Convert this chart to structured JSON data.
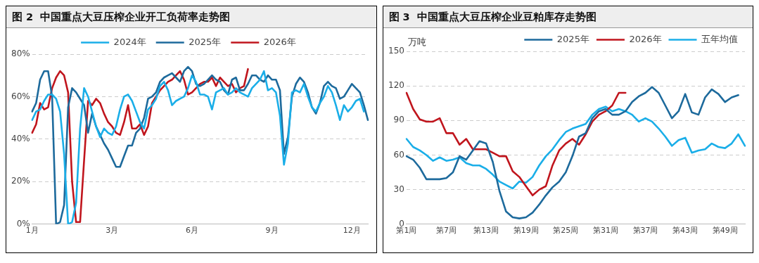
{
  "chart_data": [
    {
      "type": "line",
      "title": "图 2  中国重点大豆压榨企业开工负荷率走势图",
      "categories": [
        "1月",
        null,
        null,
        null,
        null,
        null,
        null,
        null,
        null,
        null,
        null,
        null,
        null,
        null,
        null,
        null,
        null,
        null,
        null,
        null,
        "3月",
        null,
        null,
        null,
        null,
        null,
        null,
        null,
        null,
        null,
        null,
        null,
        null,
        null,
        null,
        null,
        null,
        null,
        null,
        null,
        "6月",
        null,
        null,
        null,
        null,
        null,
        null,
        null,
        null,
        null,
        null,
        null,
        null,
        null,
        null,
        null,
        null,
        null,
        null,
        null,
        "9月",
        null,
        null,
        null,
        null,
        null,
        null,
        null,
        null,
        null,
        null,
        null,
        null,
        null,
        null,
        null,
        null,
        null,
        null,
        null,
        "12月",
        null,
        null,
        null,
        null
      ],
      "ylim": [
        0,
        80
      ],
      "yticks": [
        {
          "value": 0,
          "label": "0%"
        },
        {
          "value": 20,
          "label": "20%"
        },
        {
          "value": 40,
          "label": "40%"
        },
        {
          "value": 60,
          "label": "60%"
        },
        {
          "value": 80,
          "label": "80%"
        }
      ],
      "grid": "y",
      "legend": "top",
      "line_style": "solid",
      "marker": "none",
      "series": [
        {
          "name": "2024年",
          "color": "#1aaee8",
          "values": [
            49,
            53,
            54,
            58,
            61,
            61,
            59,
            53,
            33,
            0,
            1,
            10,
            45,
            64,
            60,
            53,
            46,
            41,
            45,
            43,
            42,
            46,
            54,
            60,
            61,
            58,
            53,
            48,
            45,
            54,
            56,
            59,
            65,
            67,
            63,
            56,
            58,
            59,
            60,
            64,
            70,
            67,
            61,
            61,
            60,
            54,
            62,
            63,
            64,
            61,
            62,
            64,
            62,
            61,
            60,
            64,
            66,
            68,
            72,
            63,
            64,
            62,
            51,
            28,
            38,
            62,
            63,
            62,
            66,
            60,
            55,
            53,
            57,
            60,
            65,
            62,
            56,
            49,
            56,
            53,
            55,
            58,
            59,
            53,
            null
          ]
        },
        {
          "name": "2025年",
          "color": "#1d6a9c",
          "values": [
            53,
            57,
            68,
            72,
            72,
            60,
            0,
            1,
            9,
            55,
            64,
            62,
            59,
            56,
            43,
            52,
            46,
            42,
            38,
            35,
            31,
            27,
            27,
            32,
            37,
            37,
            43,
            45,
            50,
            59,
            60,
            62,
            67,
            69,
            70,
            71,
            69,
            67,
            72,
            74,
            72,
            66,
            65,
            66,
            68,
            70,
            68,
            67,
            63,
            61,
            68,
            69,
            63,
            63,
            66,
            70,
            70,
            68,
            67,
            70,
            68,
            68,
            63,
            33,
            41,
            60,
            66,
            69,
            67,
            62,
            55,
            52,
            57,
            65,
            67,
            65,
            64,
            59,
            60,
            63,
            66,
            64,
            62,
            56,
            49
          ]
        },
        {
          "name": "2026年",
          "color": "#c0151d",
          "values": [
            43,
            47,
            57,
            54,
            55,
            64,
            69,
            72,
            70,
            62,
            20,
            1,
            1,
            30,
            58,
            56,
            59,
            57,
            52,
            48,
            46,
            43,
            42,
            48,
            56,
            45,
            45,
            47,
            42,
            46,
            57,
            60,
            63,
            65,
            67,
            68,
            70,
            72,
            68,
            61,
            62,
            64,
            66,
            67,
            67,
            69,
            65,
            69,
            67,
            65,
            66,
            62,
            64,
            65,
            73,
            null,
            null,
            null,
            null,
            null,
            null,
            null,
            null,
            null,
            null,
            null,
            null,
            null,
            null,
            null,
            null,
            null,
            null,
            null,
            null,
            null,
            null,
            null,
            null,
            null,
            null,
            null,
            null,
            null,
            null
          ]
        }
      ]
    },
    {
      "type": "line",
      "title": "图 3  中国重点大豆压榨企业豆粕库存走势图",
      "ylabel": "万吨",
      "categories": [
        "第1周",
        null,
        null,
        null,
        null,
        null,
        "第7周",
        null,
        null,
        null,
        null,
        null,
        "第13周",
        null,
        null,
        null,
        null,
        null,
        "第19周",
        null,
        null,
        null,
        null,
        null,
        "第25周",
        null,
        null,
        null,
        null,
        null,
        "第31周",
        null,
        null,
        null,
        null,
        null,
        "第37周",
        null,
        null,
        null,
        null,
        null,
        "第43周",
        null,
        null,
        null,
        null,
        null,
        "第49周",
        null,
        null,
        null
      ],
      "ylim": [
        0,
        150
      ],
      "yticks": [
        0,
        30,
        60,
        90,
        120,
        150
      ],
      "grid": "y",
      "legend": "top right",
      "line_style": "solid",
      "marker": "none",
      "series": [
        {
          "name": "2025年",
          "color": "#1d6a9c",
          "values": [
            59,
            56,
            49,
            39,
            39,
            39,
            40,
            45,
            59,
            56,
            64,
            72,
            70,
            54,
            29,
            11,
            6,
            5,
            6,
            10,
            17,
            25,
            32,
            37,
            45,
            59,
            76,
            79,
            92,
            98,
            100,
            95,
            95,
            98,
            106,
            111,
            114,
            119,
            114,
            103,
            92,
            98,
            113,
            97,
            95,
            110,
            117,
            113,
            106,
            110,
            112,
            null
          ]
        },
        {
          "name": "2026年",
          "color": "#c0151d",
          "values": [
            114,
            100,
            91,
            89,
            89,
            92,
            79,
            79,
            69,
            74,
            65,
            65,
            65,
            62,
            59,
            59,
            46,
            41,
            33,
            25,
            30,
            33,
            51,
            64,
            70,
            74,
            69,
            78,
            89,
            95,
            98,
            103,
            114,
            114,
            null,
            null,
            null,
            null,
            null,
            null,
            null,
            null,
            null,
            null,
            null,
            null,
            null,
            null,
            null,
            null,
            null,
            null
          ]
        },
        {
          "name": "五年均值",
          "color": "#1aaee8",
          "values": [
            74,
            67,
            64,
            60,
            55,
            58,
            55,
            56,
            58,
            53,
            51,
            51,
            48,
            43,
            37,
            34,
            31,
            37,
            36,
            41,
            51,
            59,
            65,
            73,
            80,
            83,
            85,
            87,
            95,
            100,
            102,
            98,
            100,
            98,
            95,
            89,
            92,
            89,
            83,
            76,
            68,
            73,
            75,
            62,
            64,
            65,
            70,
            67,
            66,
            70,
            78,
            68
          ]
        }
      ]
    }
  ]
}
